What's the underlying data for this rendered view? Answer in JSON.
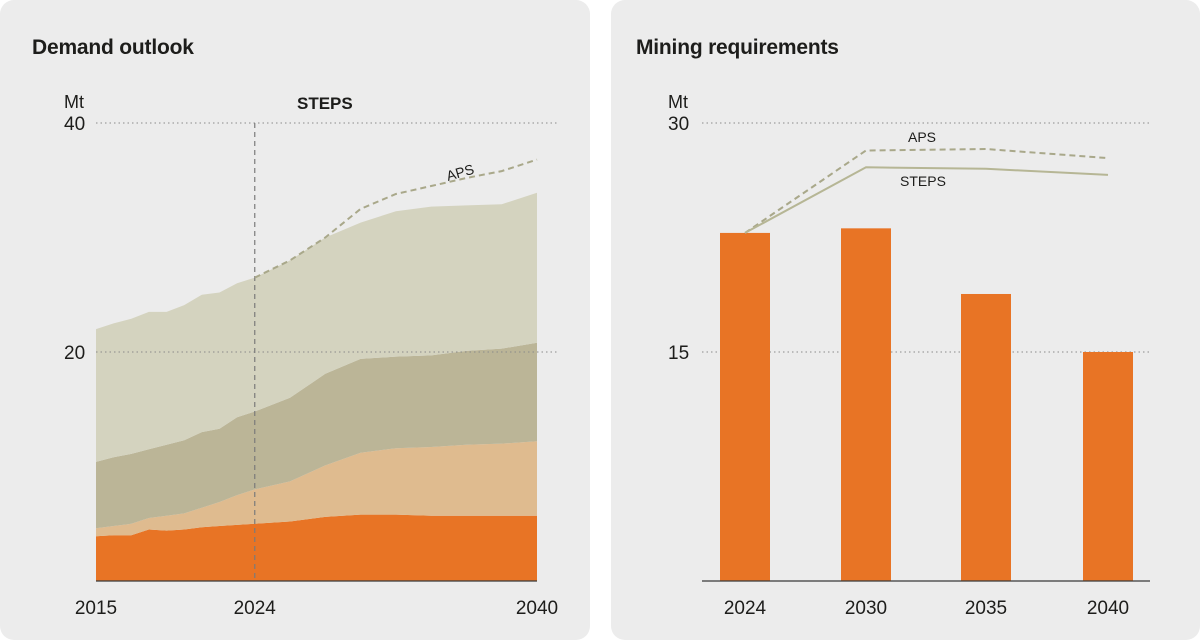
{
  "left_panel": {
    "title": "Demand outlook"
  },
  "right_panel": {
    "title": "Mining requirements"
  },
  "colors": {
    "panel_bg": "#ececec",
    "layer_1": "#e87425",
    "layer_2": "#dfbb8f",
    "layer_3": "#bbb597",
    "layer_4": "#d4d3bf",
    "steps_line": "#b6b695",
    "aps_line": "#a9a88a",
    "bar": "#e87425"
  },
  "chart_data": [
    {
      "type": "area",
      "stacked": true,
      "title": "Demand outlook",
      "ylabel": "Mt",
      "ylim": [
        0,
        40
      ],
      "yticks": [
        20,
        40
      ],
      "xticks": [
        "2015",
        "2024",
        "2040"
      ],
      "xlim": [
        2015,
        2040
      ],
      "divider_year": 2024,
      "divider_label": "STEPS",
      "grid": "dotted horizontal",
      "x": [
        2015,
        2016,
        2017,
        2018,
        2019,
        2020,
        2021,
        2022,
        2023,
        2024,
        2026,
        2028,
        2030,
        2032,
        2034,
        2036,
        2038,
        2040
      ],
      "series": [
        {
          "values": [
            3.9,
            4.0,
            4.0,
            4.5,
            4.4,
            4.5,
            4.7,
            4.8,
            4.9,
            5.0,
            5.2,
            5.6,
            5.8,
            5.8,
            5.7,
            5.7,
            5.7,
            5.7
          ]
        },
        {
          "values": [
            0.7,
            0.8,
            1.0,
            1.0,
            1.3,
            1.4,
            1.7,
            2.1,
            2.6,
            3.0,
            3.5,
            4.5,
            5.4,
            5.8,
            6.0,
            6.2,
            6.3,
            6.5
          ]
        },
        {
          "values": [
            5.8,
            6.0,
            6.1,
            6.0,
            6.2,
            6.4,
            6.6,
            6.4,
            6.8,
            6.8,
            7.3,
            8.0,
            8.2,
            8.0,
            8.0,
            8.2,
            8.3,
            8.6
          ]
        },
        {
          "values": [
            11.6,
            11.7,
            11.8,
            12.0,
            11.6,
            11.8,
            12.0,
            11.9,
            11.7,
            11.7,
            12.0,
            11.9,
            11.9,
            12.7,
            13.0,
            12.7,
            12.6,
            13.1
          ]
        }
      ],
      "aps": {
        "name": "APS",
        "x": [
          2024,
          2026,
          2028,
          2030,
          2032,
          2034,
          2036,
          2038,
          2040
        ],
        "values": [
          26.5,
          28.0,
          30.0,
          32.5,
          33.8,
          34.5,
          35.2,
          35.8,
          36.8
        ]
      }
    },
    {
      "type": "bar",
      "title": "Mining requirements",
      "ylabel": "Mt",
      "ylim": [
        0,
        30
      ],
      "yticks": [
        15,
        30
      ],
      "grid": "dotted horizontal",
      "categories": [
        "2024",
        "2030",
        "2035",
        "2040"
      ],
      "values": [
        22.8,
        23.1,
        18.8,
        15.0
      ],
      "lines": [
        {
          "name": "APS",
          "style": "dashed",
          "values": [
            22.8,
            28.2,
            28.3,
            27.7
          ]
        },
        {
          "name": "STEPS",
          "style": "solid",
          "values": [
            22.8,
            27.1,
            27.0,
            26.6
          ]
        }
      ]
    }
  ]
}
